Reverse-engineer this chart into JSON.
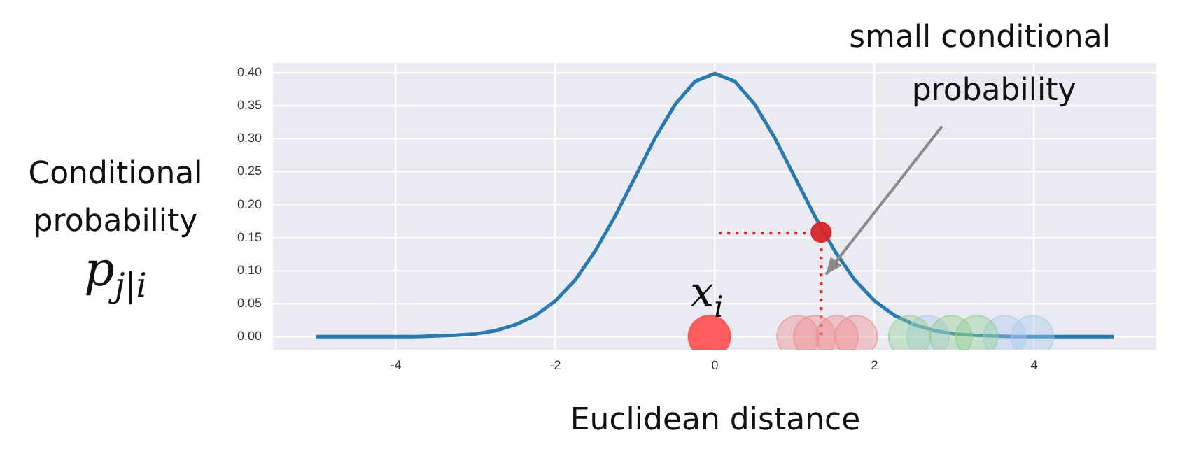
{
  "chart_data": {
    "type": "line",
    "xlabel": "Euclidean distance",
    "ylabel": "Conditional probability p$_{j|i}$",
    "xlim": [
      -5.54,
      5.53
    ],
    "ylim": [
      -0.02,
      0.415
    ],
    "xticks": [
      -4,
      -2,
      0,
      2,
      4
    ],
    "yticks": [
      {
        "value": 0,
        "label": "0.00"
      },
      {
        "value": 0.05,
        "label": "0.05"
      },
      {
        "value": 0.1,
        "label": "0.10"
      },
      {
        "value": 0.15,
        "label": "0.15"
      },
      {
        "value": 0.2,
        "label": "0.20"
      },
      {
        "value": 0.25,
        "label": "0.25"
      },
      {
        "value": 0.3,
        "label": "0.30"
      },
      {
        "value": 0.35,
        "label": "0.35"
      },
      {
        "value": 0.4,
        "label": "0.40"
      }
    ],
    "grid": true,
    "legend": false,
    "series": [
      {
        "marker": "none",
        "color": "#2a7ab0",
        "x": [
          -5,
          -4.75,
          -4.5,
          -4.25,
          -4,
          -3.75,
          -3.5,
          -3.25,
          -3,
          -2.75,
          -2.5,
          -2.25,
          -2,
          -1.75,
          -1.5,
          -1.25,
          -1,
          -0.75,
          -0.5,
          -0.25,
          0,
          0.25,
          0.5,
          0.75,
          1,
          1.25,
          1.5,
          1.75,
          2,
          2.25,
          2.5,
          2.75,
          3,
          3.25,
          3.5,
          3.75,
          4,
          4.25,
          4.5,
          4.75,
          5
        ],
        "values": [
          0,
          0,
          0,
          0,
          0,
          0,
          0.001,
          0.002,
          0.004,
          0.009,
          0.018,
          0.032,
          0.054,
          0.086,
          0.13,
          0.183,
          0.242,
          0.301,
          0.352,
          0.387,
          0.399,
          0.387,
          0.352,
          0.301,
          0.242,
          0.183,
          0.13,
          0.086,
          0.054,
          0.032,
          0.018,
          0.009,
          0.004,
          0.002,
          0.001,
          0,
          0,
          0,
          0,
          0,
          0
        ]
      },
      {
        "type": "line",
        "marker": "none",
        "line_style": "dotted",
        "color": "#d62728",
        "x": [
          0.05,
          1.33,
          1.33
        ],
        "values": [
          0.157,
          0.157,
          0
        ]
      },
      {
        "type": "scatter",
        "marker": "circle",
        "color": "#f08a8a",
        "x": [
          1.04,
          1.25,
          1.53,
          1.77
        ],
        "values": [
          0,
          0,
          0,
          0
        ]
      },
      {
        "type": "scatter",
        "marker": "circle",
        "color": "#8fd08f",
        "x": [
          2.44,
          2.96,
          3.28
        ],
        "values": [
          0,
          0,
          0
        ]
      },
      {
        "type": "scatter",
        "marker": "circle",
        "color": "#a9cbef",
        "x": [
          2.67,
          3.63,
          3.98
        ],
        "values": [
          0,
          0,
          0
        ]
      },
      {
        "type": "scatter",
        "marker": "circle",
        "color": "#ff5555",
        "x": [
          -0.07
        ],
        "values": [
          0
        ]
      },
      {
        "type": "scatter",
        "marker": "circle",
        "color": "#d62728",
        "x": [
          1.33
        ],
        "values": [
          0.158
        ]
      }
    ],
    "annotations": [
      "x$_{i}$",
      {
        "text": "small conditional probability",
        "x": 1.39,
        "y": 0.094
      }
    ]
  }
}
